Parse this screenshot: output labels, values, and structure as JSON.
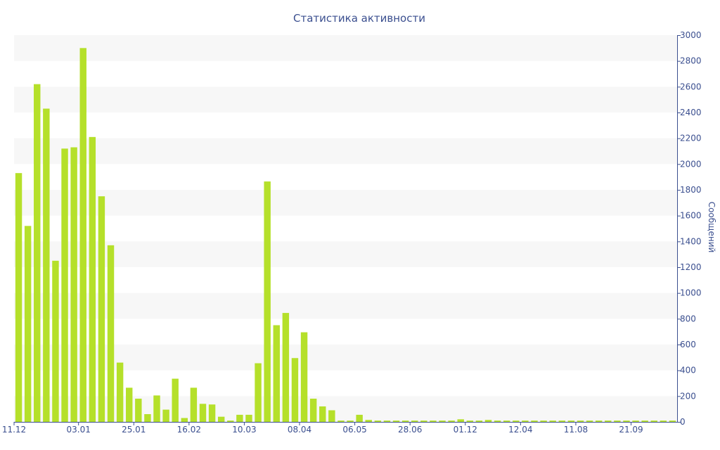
{
  "chart_data": {
    "type": "bar",
    "title": "Статистика активности",
    "ylabel": "Сообщений",
    "xlabel": "",
    "ylim": [
      0,
      3000
    ],
    "y_ticks": [
      0,
      200,
      400,
      600,
      800,
      1000,
      1200,
      1400,
      1600,
      1800,
      2000,
      2200,
      2400,
      2600,
      2800,
      3000
    ],
    "y_axis_side": "right",
    "grid": "alternating horizontal bands",
    "bar_color": "#b5e02a",
    "text_color": "#3b4f8f",
    "band_color": "#f7f7f7",
    "x_tick_labels": [
      {
        "label": "11.12",
        "index": -0.5
      },
      {
        "label": "03.01",
        "index": 6.5
      },
      {
        "label": "25.01",
        "index": 12.5
      },
      {
        "label": "16.02",
        "index": 18.5
      },
      {
        "label": "10.03",
        "index": 24.5
      },
      {
        "label": "08.04",
        "index": 30.5
      },
      {
        "label": "06.05",
        "index": 36.5
      },
      {
        "label": "28.06",
        "index": 42.5
      },
      {
        "label": "01.12",
        "index": 48.5
      },
      {
        "label": "12.04",
        "index": 54.5
      },
      {
        "label": "11.08",
        "index": 60.5
      },
      {
        "label": "21.09",
        "index": 66.5
      }
    ],
    "values": [
      1930,
      1520,
      2620,
      2430,
      1250,
      2120,
      2130,
      2900,
      2210,
      1750,
      1370,
      460,
      265,
      180,
      60,
      205,
      95,
      335,
      30,
      265,
      140,
      135,
      40,
      10,
      55,
      55,
      455,
      1865,
      750,
      845,
      495,
      695,
      180,
      120,
      90,
      10,
      10,
      55,
      15,
      10,
      10,
      10,
      10,
      10,
      10,
      10,
      10,
      10,
      20,
      10,
      10,
      15,
      10,
      10,
      10,
      10,
      10,
      10,
      10,
      10,
      10,
      10,
      10,
      10,
      10,
      10,
      10,
      10,
      10,
      10,
      10,
      10
    ]
  }
}
